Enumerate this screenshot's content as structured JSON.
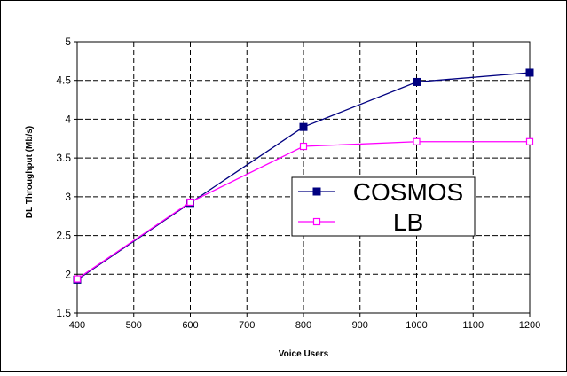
{
  "chart_data": {
    "type": "line",
    "title": "",
    "xlabel": "Voice Users",
    "ylabel": "DL Throughput (Mb/s)",
    "xlim": [
      400,
      1200
    ],
    "ylim": [
      1.5,
      5
    ],
    "x_ticks": [
      "400",
      "500",
      "600",
      "700",
      "800",
      "900",
      "1000",
      "1100",
      "1200"
    ],
    "y_ticks": [
      "1.5",
      "2",
      "2.5",
      "3",
      "3.5",
      "4",
      "4.5",
      "5"
    ],
    "grid": true,
    "legend_position": "center-right",
    "series": [
      {
        "name": "COSMOS",
        "color": "#000080",
        "marker": "filled-square",
        "x": [
          400,
          600,
          800,
          1000,
          1200
        ],
        "y": [
          1.93,
          2.92,
          3.9,
          4.48,
          4.6
        ]
      },
      {
        "name": "LB",
        "color": "#ff00ff",
        "marker": "open-square",
        "x": [
          400,
          600,
          800,
          1000,
          1200
        ],
        "y": [
          1.94,
          2.93,
          3.65,
          3.71,
          3.71
        ]
      }
    ]
  }
}
